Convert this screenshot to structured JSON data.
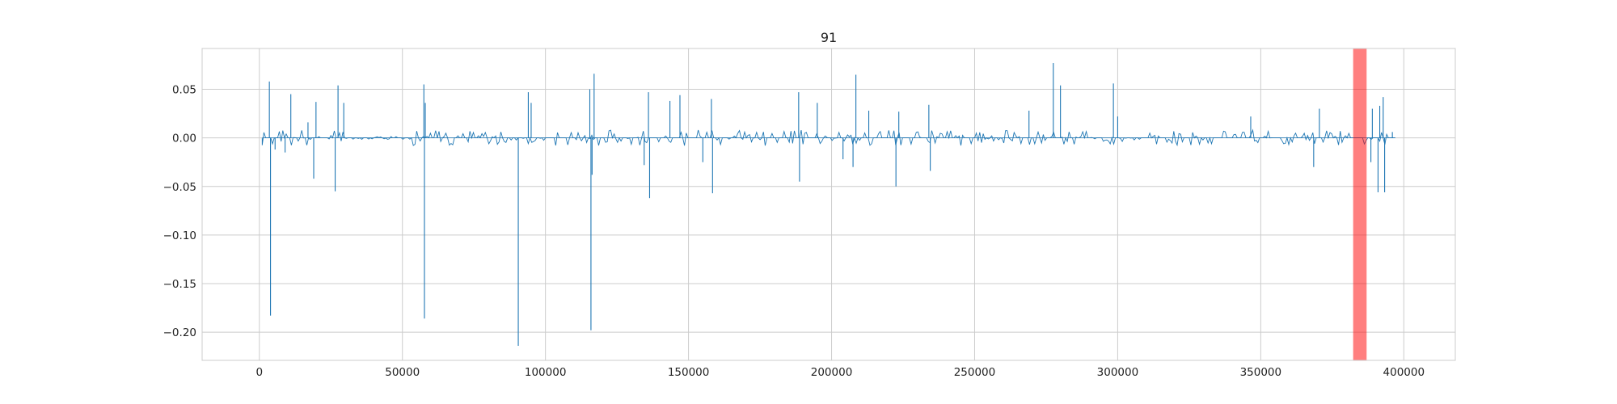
{
  "chart_data": {
    "type": "line",
    "title": "91",
    "xlabel": "",
    "ylabel": "",
    "xlim": [
      -20000,
      418000
    ],
    "ylim": [
      -0.229,
      0.092
    ],
    "grid": true,
    "line_color": "#1f77b4",
    "grid_color": "#cccccc",
    "axes_edge_color": "#cccccc",
    "x_ticks": [
      0,
      50000,
      100000,
      150000,
      200000,
      250000,
      300000,
      350000,
      400000
    ],
    "x_tick_labels": [
      "0",
      "50000",
      "100000",
      "150000",
      "200000",
      "250000",
      "300000",
      "350000",
      "400000"
    ],
    "y_ticks": [
      -0.2,
      -0.15,
      -0.1,
      -0.05,
      0.0,
      0.05
    ],
    "y_tick_labels": [
      "−0.20",
      "−0.15",
      "−0.10",
      "−0.05",
      "0.00",
      "0.05"
    ],
    "highlight_span": {
      "x_start": 382300,
      "x_end": 387000,
      "color": "#ff0000",
      "alpha": 0.5
    },
    "x_range": [
      1000,
      397000
    ],
    "spikes": [
      {
        "x": 3500,
        "y": 0.058
      },
      {
        "x": 3900,
        "y": -0.183
      },
      {
        "x": 5500,
        "y": -0.012
      },
      {
        "x": 9000,
        "y": -0.015
      },
      {
        "x": 11000,
        "y": 0.045
      },
      {
        "x": 17000,
        "y": 0.016
      },
      {
        "x": 19000,
        "y": -0.042
      },
      {
        "x": 19800,
        "y": 0.037
      },
      {
        "x": 26500,
        "y": -0.055
      },
      {
        "x": 27500,
        "y": 0.054
      },
      {
        "x": 29500,
        "y": 0.036
      },
      {
        "x": 57500,
        "y": 0.055
      },
      {
        "x": 57700,
        "y": -0.186
      },
      {
        "x": 58000,
        "y": 0.036
      },
      {
        "x": 90500,
        "y": -0.214
      },
      {
        "x": 94000,
        "y": 0.047
      },
      {
        "x": 95000,
        "y": 0.036
      },
      {
        "x": 115500,
        "y": 0.05
      },
      {
        "x": 115900,
        "y": -0.198
      },
      {
        "x": 116300,
        "y": -0.038
      },
      {
        "x": 117000,
        "y": 0.066
      },
      {
        "x": 134500,
        "y": -0.028
      },
      {
        "x": 136000,
        "y": 0.047
      },
      {
        "x": 136400,
        "y": -0.062
      },
      {
        "x": 143500,
        "y": 0.038
      },
      {
        "x": 147000,
        "y": 0.044
      },
      {
        "x": 155000,
        "y": -0.025
      },
      {
        "x": 158000,
        "y": 0.04
      },
      {
        "x": 158400,
        "y": -0.057
      },
      {
        "x": 188500,
        "y": 0.047
      },
      {
        "x": 188800,
        "y": -0.045
      },
      {
        "x": 195000,
        "y": 0.036
      },
      {
        "x": 204000,
        "y": -0.022
      },
      {
        "x": 207500,
        "y": -0.03
      },
      {
        "x": 208500,
        "y": 0.065
      },
      {
        "x": 213000,
        "y": 0.028
      },
      {
        "x": 222500,
        "y": -0.05
      },
      {
        "x": 223500,
        "y": 0.027
      },
      {
        "x": 234000,
        "y": 0.034
      },
      {
        "x": 234500,
        "y": -0.034
      },
      {
        "x": 269000,
        "y": 0.028
      },
      {
        "x": 277500,
        "y": 0.077
      },
      {
        "x": 280000,
        "y": 0.054
      },
      {
        "x": 298500,
        "y": 0.056
      },
      {
        "x": 300000,
        "y": 0.022
      },
      {
        "x": 346500,
        "y": 0.022
      },
      {
        "x": 368500,
        "y": -0.03
      },
      {
        "x": 370500,
        "y": 0.03
      },
      {
        "x": 388500,
        "y": -0.025
      },
      {
        "x": 389000,
        "y": 0.03
      },
      {
        "x": 391000,
        "y": -0.056
      },
      {
        "x": 391600,
        "y": 0.033
      },
      {
        "x": 392800,
        "y": 0.042
      },
      {
        "x": 393300,
        "y": -0.056
      },
      {
        "x": 396000,
        "y": 0.006
      }
    ],
    "noise_amplitude": 0.008,
    "noise_sample_step": 600
  }
}
